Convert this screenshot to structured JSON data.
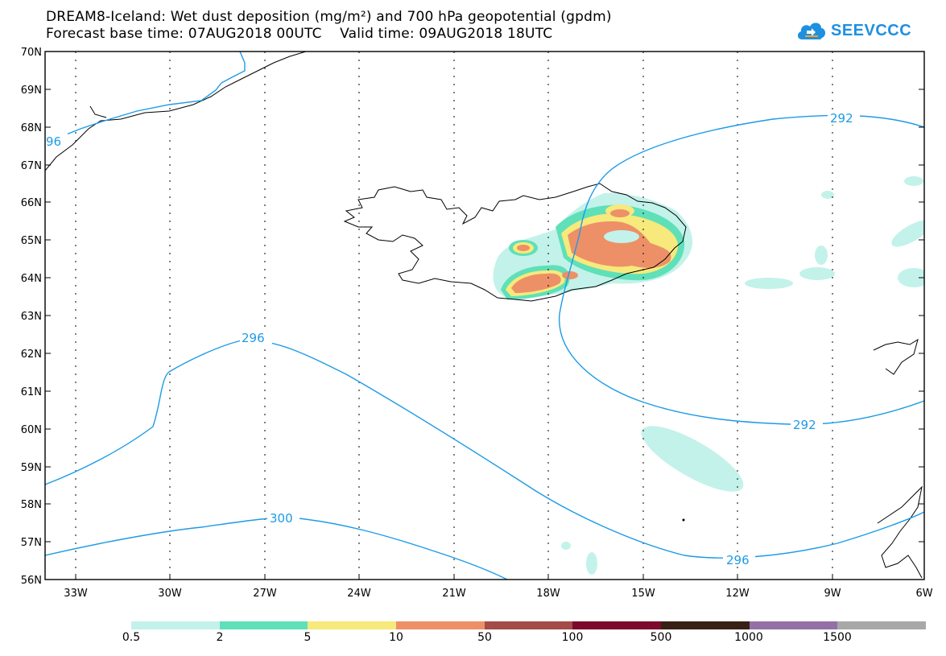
{
  "header": {
    "title_line1": "DREAM8-Iceland: Wet dust deposition (mg/m²) and 700 hPa geopotential (gpdm)",
    "title_line2": "Forecast base time: 07AUG2018 00UTC    Valid time: 09AUG2018 18UTC"
  },
  "logo": {
    "text": "SEEVCCC",
    "icon": "cloud-icon"
  },
  "map": {
    "lat_labels": [
      "70N",
      "69N",
      "68N",
      "67N",
      "66N",
      "65N",
      "64N",
      "63N",
      "62N",
      "61N",
      "60N",
      "59N",
      "58N",
      "57N",
      "56N"
    ],
    "lon_labels": [
      "33W",
      "30W",
      "27W",
      "24W",
      "21W",
      "18W",
      "15W",
      "12W",
      "9W",
      "6W"
    ],
    "contour_labels": [
      "96",
      "292",
      "292",
      "296",
      "296",
      "300"
    ]
  },
  "legend": {
    "colors": [
      "#c3f2ea",
      "#5fe0b8",
      "#f7e97c",
      "#ed9068",
      "#a34c48",
      "#7c0a2c",
      "#382014",
      "#9470a6",
      "#a8a8a8"
    ],
    "labels": [
      "0.5",
      "2",
      "5",
      "10",
      "50",
      "100",
      "500",
      "1000",
      "1500"
    ]
  }
}
